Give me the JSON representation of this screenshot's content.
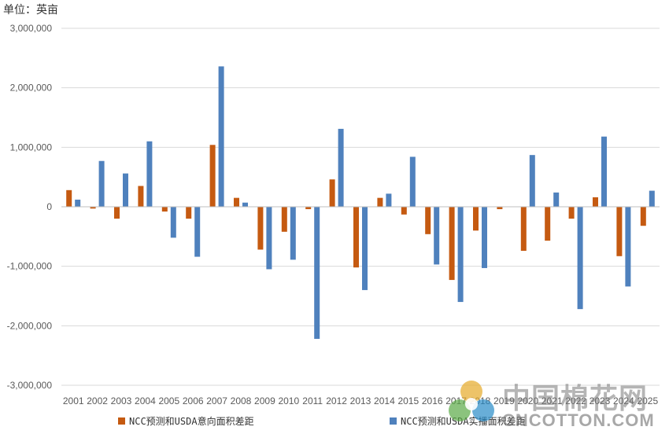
{
  "unit_label": "单位：英亩",
  "watermark": {
    "cn": "中国棉花网",
    "en": "CNCOTTON.COM"
  },
  "chart_data": {
    "type": "bar",
    "categories": [
      "2001",
      "2002",
      "2003",
      "2004",
      "2005",
      "2006",
      "2007",
      "2008",
      "2009",
      "2010",
      "2011",
      "2012",
      "2013",
      "2014",
      "2015",
      "2016",
      "2017",
      "2018",
      "2019",
      "2020",
      "2021",
      "2022",
      "2023",
      "2024",
      "2025"
    ],
    "series": [
      {
        "name": "NCC预测和USDA意向面积差距",
        "color": "#C55A11",
        "values": [
          280000,
          -30000,
          -200000,
          350000,
          -80000,
          -200000,
          1040000,
          150000,
          -720000,
          -420000,
          -40000,
          460000,
          -1020000,
          150000,
          -130000,
          -460000,
          -1230000,
          -400000,
          -40000,
          -740000,
          -570000,
          -200000,
          160000,
          -830000,
          -320000
        ]
      },
      {
        "name": "NCC预测和USDA实播面积差距",
        "color": "#4F81BD",
        "values": [
          120000,
          770000,
          560000,
          1100000,
          -520000,
          -840000,
          2360000,
          70000,
          -1050000,
          -890000,
          -2220000,
          1310000,
          -1400000,
          220000,
          840000,
          -970000,
          -1600000,
          -1030000,
          0,
          870000,
          240000,
          -1720000,
          1180000,
          -1340000,
          270000
        ]
      }
    ],
    "ylim": [
      -3000000,
      3000000
    ],
    "yticks": [
      3000000,
      2000000,
      1000000,
      0,
      -1000000,
      -2000000,
      -3000000
    ],
    "ytick_labels": [
      "3,000,000",
      "2,000,000",
      "1,000,000",
      "0",
      "-1,000,000",
      "-2,000,000",
      "-3,000,000"
    ],
    "grid": true,
    "legend_position": "bottom"
  }
}
